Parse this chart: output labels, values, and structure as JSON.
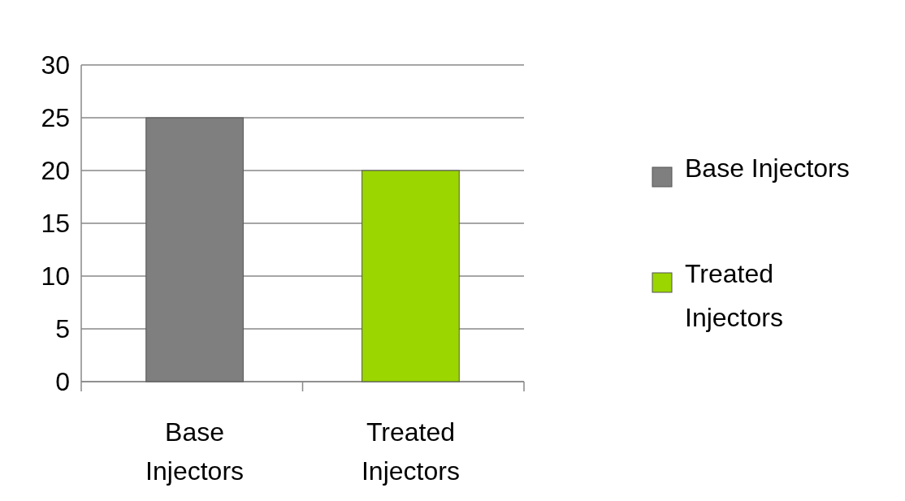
{
  "chart_data": {
    "type": "bar",
    "categories": [
      "Base Injectors",
      "Treated Injectors"
    ],
    "series": [
      {
        "name": "Base Injectors",
        "color": "#7f7f7f",
        "values": [
          25,
          null
        ]
      },
      {
        "name": "Treated Injectors",
        "color": "#9bd600",
        "values": [
          null,
          20
        ]
      }
    ],
    "ylim": [
      0,
      30
    ],
    "yticks": [
      0,
      5,
      10,
      15,
      20,
      25,
      30
    ],
    "grid": "y",
    "legend": "right"
  }
}
